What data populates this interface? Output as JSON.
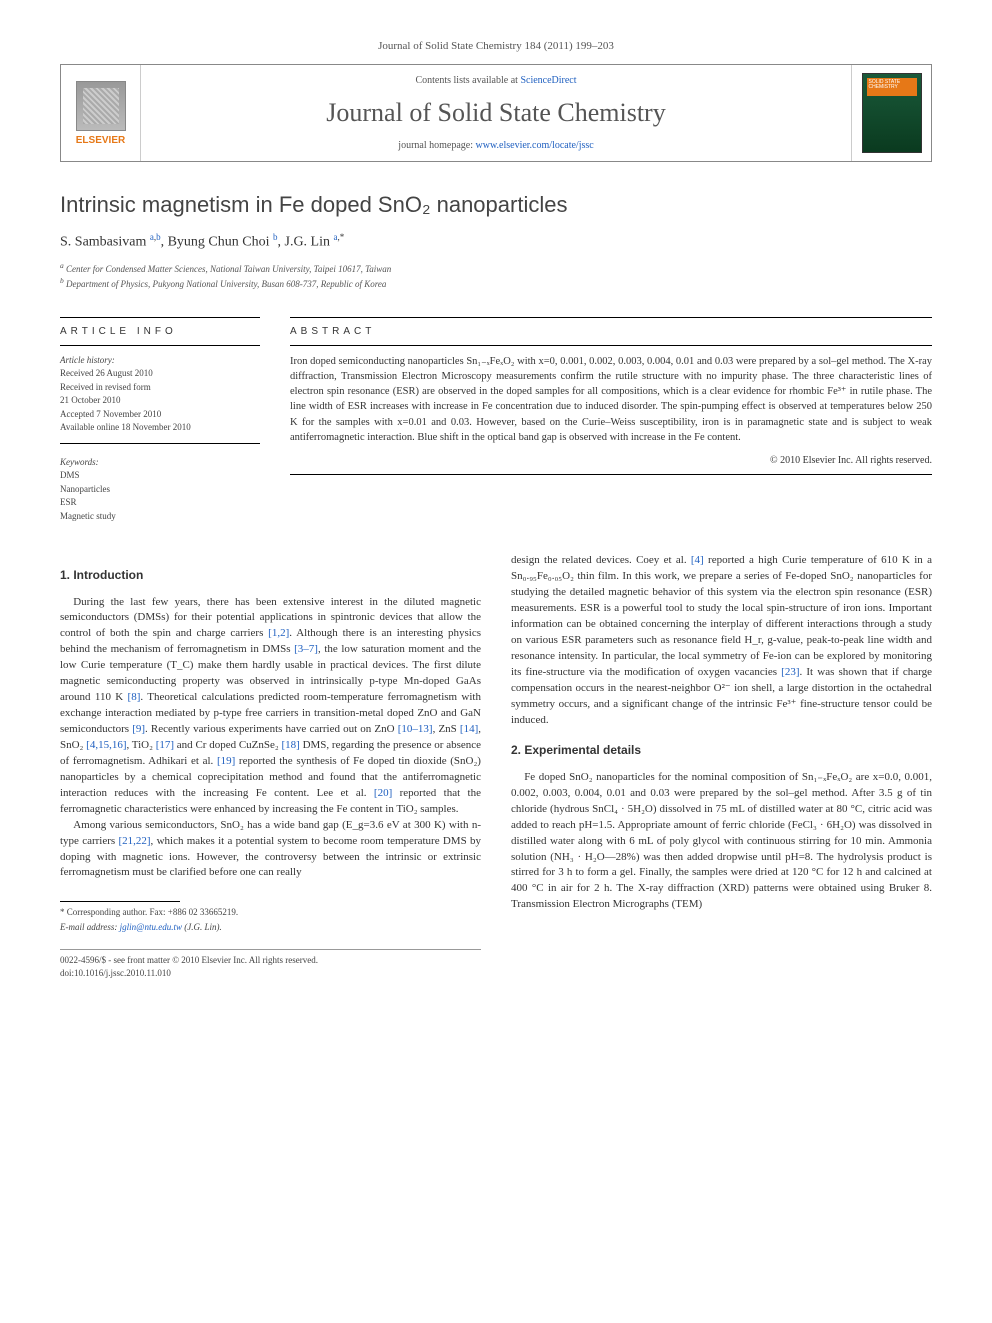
{
  "journal_ref": "Journal of Solid State Chemistry 184 (2011) 199–203",
  "header": {
    "contents_prefix": "Contents lists available at ",
    "contents_link": "ScienceDirect",
    "journal_name": "Journal of Solid State Chemistry",
    "homepage_prefix": "journal homepage: ",
    "homepage_link": "www.elsevier.com/locate/jssc",
    "publisher": "ELSEVIER",
    "cover_label": "SOLID STATE CHEMISTRY"
  },
  "title": "Intrinsic magnetism in Fe doped SnO₂ nanoparticles",
  "authors_html": "S. Sambasivam <sup><a href='#'>a</a>,<a href='#'>b</a></sup>, Byung Chun Choi <sup><a href='#'>b</a></sup>, J.G. Lin <sup><a href='#'>a</a>,*</sup>",
  "affiliations": {
    "a": "Center for Condensed Matter Sciences, National Taiwan University, Taipei 10617, Taiwan",
    "b": "Department of Physics, Pukyong National University, Busan 608-737, Republic of Korea"
  },
  "info": {
    "label": "ARTICLE INFO",
    "history_head": "Article history:",
    "received": "Received 26 August 2010",
    "revised1": "Received in revised form",
    "revised2": "21 October 2010",
    "accepted": "Accepted 7 November 2010",
    "online": "Available online 18 November 2010",
    "keywords_head": "Keywords:",
    "kw1": "DMS",
    "kw2": "Nanoparticles",
    "kw3": "ESR",
    "kw4": "Magnetic study"
  },
  "abstract": {
    "label": "ABSTRACT",
    "text": "Iron doped semiconducting nanoparticles Sn₁₋ₓFeₓO₂ with x=0, 0.001, 0.002, 0.003, 0.004, 0.01 and 0.03 were prepared by a sol–gel method. The X-ray diffraction, Transmission Electron Microscopy measurements confirm the rutile structure with no impurity phase. The three characteristic lines of electron spin resonance (ESR) are observed in the doped samples for all compositions, which is a clear evidence for rhombic Fe³⁺ in rutile phase. The line width of ESR increases with increase in Fe concentration due to induced disorder. The spin-pumping effect is observed at temperatures below 250 K for the samples with x=0.01 and 0.03. However, based on the Curie–Weiss susceptibility, iron is in paramagnetic state and is subject to weak antiferromagnetic interaction. Blue shift in the optical band gap is observed with increase in the Fe content.",
    "copyright": "© 2010 Elsevier Inc. All rights reserved."
  },
  "sections": {
    "intro_head": "1.  Introduction",
    "intro_p1": "During the last few years, there has been extensive interest in the diluted magnetic semiconductors (DMSs) for their potential applications in spintronic devices that allow the control of both the spin and charge carriers [1,2]. Although there is an interesting physics behind the mechanism of ferromagnetism in DMSs [3–7], the low saturation moment and the low Curie temperature (T_C) make them hardly usable in practical devices. The first dilute magnetic semiconducting property was observed in intrinsically p-type Mn-doped GaAs around 110 K [8]. Theoretical calculations predicted room-temperature ferromagnetism with exchange interaction mediated by p-type free carriers in transition-metal doped ZnO and GaN semiconductors [9]. Recently various experiments have carried out on ZnO [10–13], ZnS [14], SnO₂ [4,15,16], TiO₂ [17] and Cr doped CuZnSe₂ [18] DMS, regarding the presence or absence of ferromagnetism. Adhikari et al. [19] reported the synthesis of Fe doped tin dioxide (SnO₂) nanoparticles by a chemical coprecipitation method and found that the antiferromagnetic interaction reduces with the increasing Fe content. Lee et al. [20] reported that the ferromagnetic characteristics were enhanced by increasing the Fe content in TiO₂ samples.",
    "intro_p2": "Among various semiconductors, SnO₂ has a wide band gap (E_g=3.6 eV at 300 K) with n-type carriers [21,22], which makes it a potential system to become room temperature DMS by doping with magnetic ions. However, the controversy between the intrinsic or extrinsic ferromagnetism must be clarified before one can really",
    "intro_p3": "design the related devices. Coey et al. [4] reported a high Curie temperature of 610 K in a Sn₀.₉₅Fe₀.₀₅O₂ thin film. In this work, we prepare a series of Fe-doped SnO₂ nanoparticles for studying the detailed magnetic behavior of this system via the electron spin resonance (ESR) measurements. ESR is a powerful tool to study the local spin-structure of iron ions. Important information can be obtained concerning the interplay of different interactions through a study on various ESR parameters such as resonance field H_r, g-value, peak-to-peak line width and resonance intensity. In particular, the local symmetry of Fe-ion can be explored by monitoring its fine-structure via the modification of oxygen vacancies [23]. It was shown that if charge compensation occurs in the nearest-neighbor O²⁻ ion shell, a large distortion in the octahedral symmetry occurs, and a significant change of the intrinsic Fe³⁺ fine-structure tensor could be induced.",
    "exp_head": "2.  Experimental details",
    "exp_p1": "Fe doped SnO₂ nanoparticles for the nominal composition of Sn₁₋ₓFeₓO₂ are x=0.0, 0.001, 0.002, 0.003, 0.004, 0.01 and 0.03 were prepared by the sol–gel method. After 3.5 g of tin chloride (hydrous SnCl₄ · 5H₂O) dissolved in 75 mL of distilled water at 80 °C, citric acid was added to reach pH=1.5. Appropriate amount of ferric chloride (FeCl₃ · 6H₂O) was dissolved in distilled water along with 6 mL of poly glycol with continuous stirring for 10 min. Ammonia solution (NH₃ · H₂O—28%) was then added dropwise until pH=8. The hydrolysis product is stirred for 3 h to form a gel. Finally, the samples were dried at 120 °C for 12 h and calcined at 400 °C in air for 2 h. The X-ray diffraction (XRD) patterns were obtained using Bruker 8. Transmission Electron Micrographs (TEM)"
  },
  "footer": {
    "corr": "* Corresponding author. Fax: +886 02 33665219.",
    "email_label": "E-mail address: ",
    "email": "jglin@ntu.edu.tw",
    "email_suffix": " (J.G. Lin).",
    "issn": "0022-4596/$ - see front matter © 2010 Elsevier Inc. All rights reserved.",
    "doi": "doi:10.1016/j.jssc.2010.11.010"
  },
  "colors": {
    "link": "#2060c0",
    "publisher": "#e67817",
    "text": "#333333",
    "rule": "#000000"
  }
}
